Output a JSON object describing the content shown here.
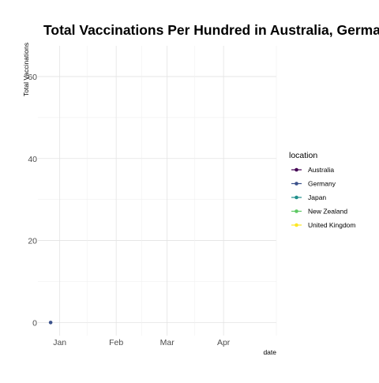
{
  "chart_data": {
    "type": "line",
    "title": "Total Vaccinations Per Hundred in Australia, Germany, Jpan,",
    "xlabel": "date",
    "ylabel": "Total Vaccinations",
    "ylim": [
      -3.2,
      67.5
    ],
    "xlim": [
      "2020-12-20",
      "2021-04-30"
    ],
    "x_ticks": [
      {
        "label": "Jan",
        "date": "2021-01-01"
      },
      {
        "label": "Feb",
        "date": "2021-02-01"
      },
      {
        "label": "Mar",
        "date": "2021-03-01"
      },
      {
        "label": "Apr",
        "date": "2021-04-01"
      }
    ],
    "y_ticks": [
      0,
      20,
      40,
      60
    ],
    "grid": true,
    "legend": {
      "title": "location",
      "placement": "right",
      "entries": [
        {
          "name": "Australia",
          "color": "#440154"
        },
        {
          "name": "Germany",
          "color": "#3b528b"
        },
        {
          "name": "Japan",
          "color": "#21908c"
        },
        {
          "name": "New Zealand",
          "color": "#5dc863"
        },
        {
          "name": "United Kingdom",
          "color": "#fde725"
        }
      ]
    },
    "series": [
      {
        "name": "Australia",
        "color": "#440154",
        "x": [],
        "y": []
      },
      {
        "name": "Germany",
        "color": "#3b528b",
        "x": [
          "2020-12-27"
        ],
        "y": [
          0
        ]
      },
      {
        "name": "Japan",
        "color": "#21908c",
        "x": [],
        "y": []
      },
      {
        "name": "New Zealand",
        "color": "#5dc863",
        "x": [],
        "y": []
      },
      {
        "name": "United Kingdom",
        "color": "#fde725",
        "x": [],
        "y": []
      }
    ]
  }
}
